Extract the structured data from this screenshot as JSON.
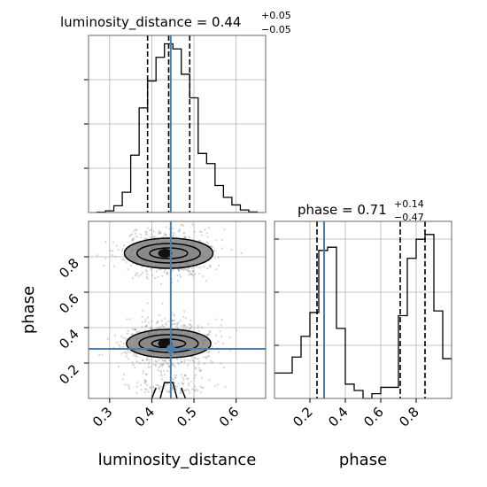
{
  "colors": {
    "truth": "#4a7fb0",
    "hist": "#000000",
    "grid": "#b0b0b0",
    "samples": "#888888"
  },
  "chart_data": [
    {
      "type": "histogram",
      "panel": "luminosity_distance_marginal",
      "title": {
        "main": "luminosity_distance = 0.44",
        "sup": "+0.05",
        "sub": "−0.05"
      },
      "xlim": [
        0.25,
        0.67
      ],
      "bin_edges": [
        0.27,
        0.29,
        0.31,
        0.33,
        0.35,
        0.37,
        0.39,
        0.41,
        0.43,
        0.45,
        0.47,
        0.49,
        0.51,
        0.53,
        0.55,
        0.57,
        0.59,
        0.61,
        0.63,
        0.65
      ],
      "counts": [
        0.002,
        0.01,
        0.04,
        0.12,
        0.34,
        0.62,
        0.78,
        0.92,
        1.0,
        0.97,
        0.82,
        0.68,
        0.35,
        0.29,
        0.16,
        0.09,
        0.045,
        0.015,
        0.003
      ],
      "quantiles": [
        0.39,
        0.44,
        0.49
      ],
      "truth": 0.445
    },
    {
      "type": "histogram",
      "panel": "phase_marginal",
      "title": {
        "main": "phase = 0.71",
        "sup": "+0.14",
        "sub": "−0.47"
      },
      "xlim": [
        0.0,
        1.0
      ],
      "xticks": [
        "0.2",
        "0.4",
        "0.6",
        "0.8"
      ],
      "bin_edges": [
        0.0,
        0.05,
        0.1,
        0.15,
        0.2,
        0.25,
        0.3,
        0.35,
        0.4,
        0.45,
        0.5,
        0.55,
        0.6,
        0.65,
        0.7,
        0.75,
        0.8,
        0.85,
        0.9,
        0.95,
        1.0
      ],
      "counts": [
        0.16,
        0.16,
        0.26,
        0.39,
        0.54,
        0.93,
        0.95,
        0.44,
        0.09,
        0.05,
        0.0,
        0.03,
        0.07,
        0.07,
        0.52,
        0.88,
        1.0,
        1.03,
        0.55,
        0.25
      ],
      "quantiles": [
        0.24,
        0.71,
        0.85
      ],
      "truth": 0.28
    },
    {
      "type": "scatter_contour",
      "panel": "joint",
      "xlabel": "luminosity_distance",
      "ylabel": "phase",
      "xlim": [
        0.25,
        0.67
      ],
      "ylim": [
        0.0,
        1.0
      ],
      "xticks": [
        "0.3",
        "0.4",
        "0.5",
        "0.6"
      ],
      "yticks": [
        "0.2",
        "0.4",
        "0.6",
        "0.8"
      ],
      "modes": [
        {
          "center": [
            0.44,
            0.82
          ],
          "levels": [
            [
              0.03,
              0.045
            ],
            [
              0.055,
              0.075
            ],
            [
              0.085,
              0.105
            ]
          ]
        },
        {
          "center": [
            0.44,
            0.31
          ],
          "levels": [
            [
              0.025,
              0.04
            ],
            [
              0.05,
              0.07
            ],
            [
              0.08,
              0.1
            ]
          ]
        }
      ],
      "truth": [
        0.445,
        0.28
      ]
    }
  ]
}
